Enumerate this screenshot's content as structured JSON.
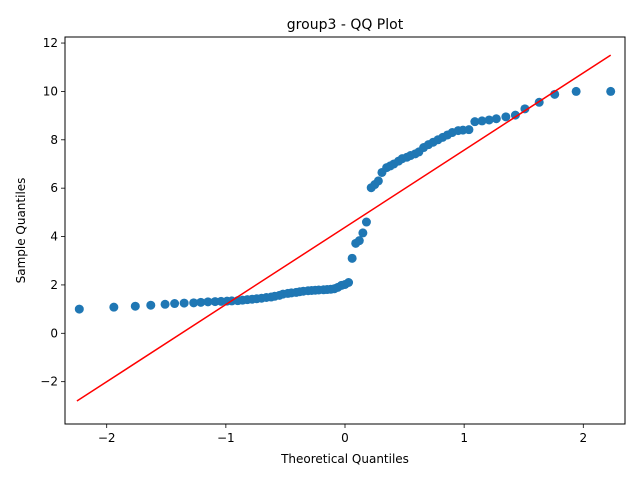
{
  "chart_data": {
    "type": "scatter",
    "title": "group3 - QQ Plot",
    "xlabel": "Theoretical Quantiles",
    "ylabel": "Sample Quantiles",
    "xlim": [
      -2.35,
      2.35
    ],
    "ylim": [
      -3.75,
      12.25
    ],
    "xticks": [
      -2,
      -1,
      0,
      1,
      2
    ],
    "yticks": [
      -2,
      0,
      2,
      4,
      6,
      8,
      10,
      12
    ],
    "xtick_labels": [
      "−2",
      "−1",
      "0",
      "1",
      "2"
    ],
    "ytick_labels": [
      "−2",
      "0",
      "2",
      "4",
      "6",
      "8",
      "10",
      "12"
    ],
    "grid": false,
    "marker_color": "#1f77b4",
    "line_color": "#ff0000",
    "reference_line": {
      "x": [
        -2.25,
        2.23
      ],
      "y": [
        -2.8,
        11.5
      ]
    },
    "series": [
      {
        "x": [
          -2.23,
          -1.94,
          -1.76,
          -1.63,
          -1.51,
          -1.43,
          -1.35,
          -1.27,
          -1.21,
          -1.15,
          -1.09,
          -1.04,
          -0.99,
          -0.95,
          -0.9,
          -0.86,
          -0.82,
          -0.78,
          -0.74,
          -0.7,
          -0.66,
          -0.62,
          -0.59,
          -0.55,
          -0.52,
          -0.48,
          -0.45,
          -0.41,
          -0.38,
          -0.35,
          -0.31,
          -0.28,
          -0.25,
          -0.22,
          -0.18,
          -0.15,
          -0.12,
          -0.09,
          -0.06,
          -0.03,
          0.0,
          0.03,
          0.06,
          0.09,
          0.12,
          0.15,
          0.18,
          0.22,
          0.25,
          0.28,
          0.31,
          0.35,
          0.38,
          0.41,
          0.45,
          0.48,
          0.52,
          0.55,
          0.59,
          0.62,
          0.66,
          0.7,
          0.74,
          0.78,
          0.82,
          0.86,
          0.9,
          0.95,
          0.99,
          1.04,
          1.09,
          1.15,
          1.21,
          1.27,
          1.35,
          1.43,
          1.51,
          1.63,
          1.76,
          1.94,
          2.23
        ],
        "y": [
          1.0,
          1.08,
          1.12,
          1.16,
          1.2,
          1.23,
          1.25,
          1.26,
          1.28,
          1.3,
          1.31,
          1.32,
          1.33,
          1.34,
          1.35,
          1.37,
          1.39,
          1.41,
          1.43,
          1.45,
          1.48,
          1.5,
          1.53,
          1.57,
          1.62,
          1.65,
          1.67,
          1.69,
          1.72,
          1.74,
          1.76,
          1.77,
          1.78,
          1.79,
          1.8,
          1.81,
          1.82,
          1.84,
          1.9,
          1.98,
          2.02,
          2.1,
          3.1,
          3.72,
          3.83,
          4.15,
          4.6,
          6.02,
          6.15,
          6.3,
          6.65,
          6.85,
          6.92,
          7.0,
          7.12,
          7.22,
          7.28,
          7.35,
          7.42,
          7.5,
          7.68,
          7.8,
          7.9,
          8.0,
          8.1,
          8.2,
          8.3,
          8.38,
          8.4,
          8.42,
          8.75,
          8.78,
          8.82,
          8.87,
          8.95,
          9.02,
          9.28,
          9.55,
          9.88,
          10.0,
          10.0
        ]
      }
    ]
  }
}
